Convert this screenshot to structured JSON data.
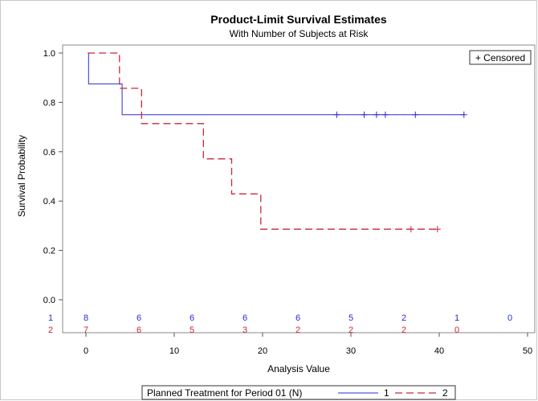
{
  "chart_data": {
    "type": "line",
    "title": "Product-Limit Survival Estimates",
    "subtitle": "With Number of Subjects at Risk",
    "xlabel": "Analysis Value",
    "ylabel": "Survival Probability",
    "xlim": [
      0,
      50
    ],
    "ylim": [
      0,
      1
    ],
    "x_ticks": [
      "0",
      "10",
      "20",
      "30",
      "40",
      "50"
    ],
    "y_ticks": [
      "0.0",
      "0.2",
      "0.4",
      "0.6",
      "0.8",
      "1.0"
    ],
    "censored_label": "+ Censored",
    "legend_title": "Planned Treatment for Period 01 (N)",
    "series": [
      {
        "name": "1",
        "color": "#2b2bd8",
        "dash": "solid",
        "steps": [
          {
            "x": 0.3,
            "y": 1.0
          },
          {
            "x": 0.3,
            "y": 0.875
          },
          {
            "x": 4.1,
            "y": 0.875
          },
          {
            "x": 4.1,
            "y": 0.75
          },
          {
            "x": 42.8,
            "y": 0.75
          }
        ],
        "censored": [
          28.4,
          31.5,
          32.9,
          33.9,
          37.3,
          42.8
        ],
        "at_risk": [
          "8",
          "6",
          "6",
          "6",
          "6",
          "5",
          "2",
          "1",
          "0"
        ]
      },
      {
        "name": "2",
        "color": "#c8283c",
        "dash": "dashed",
        "steps": [
          {
            "x": 0.2,
            "y": 1.0
          },
          {
            "x": 3.8,
            "y": 1.0
          },
          {
            "x": 3.8,
            "y": 0.857
          },
          {
            "x": 6.3,
            "y": 0.857
          },
          {
            "x": 6.3,
            "y": 0.714
          },
          {
            "x": 13.3,
            "y": 0.714
          },
          {
            "x": 13.3,
            "y": 0.571
          },
          {
            "x": 16.5,
            "y": 0.571
          },
          {
            "x": 16.5,
            "y": 0.429
          },
          {
            "x": 19.8,
            "y": 0.429
          },
          {
            "x": 19.8,
            "y": 0.286
          },
          {
            "x": 39.8,
            "y": 0.286
          }
        ],
        "censored": [
          36.8,
          39.8
        ],
        "at_risk": [
          "7",
          "6",
          "5",
          "3",
          "2",
          "2",
          "2",
          "0"
        ]
      }
    ],
    "at_risk_times": [
      0,
      6,
      12,
      18,
      24,
      30,
      36,
      42,
      48
    ]
  }
}
